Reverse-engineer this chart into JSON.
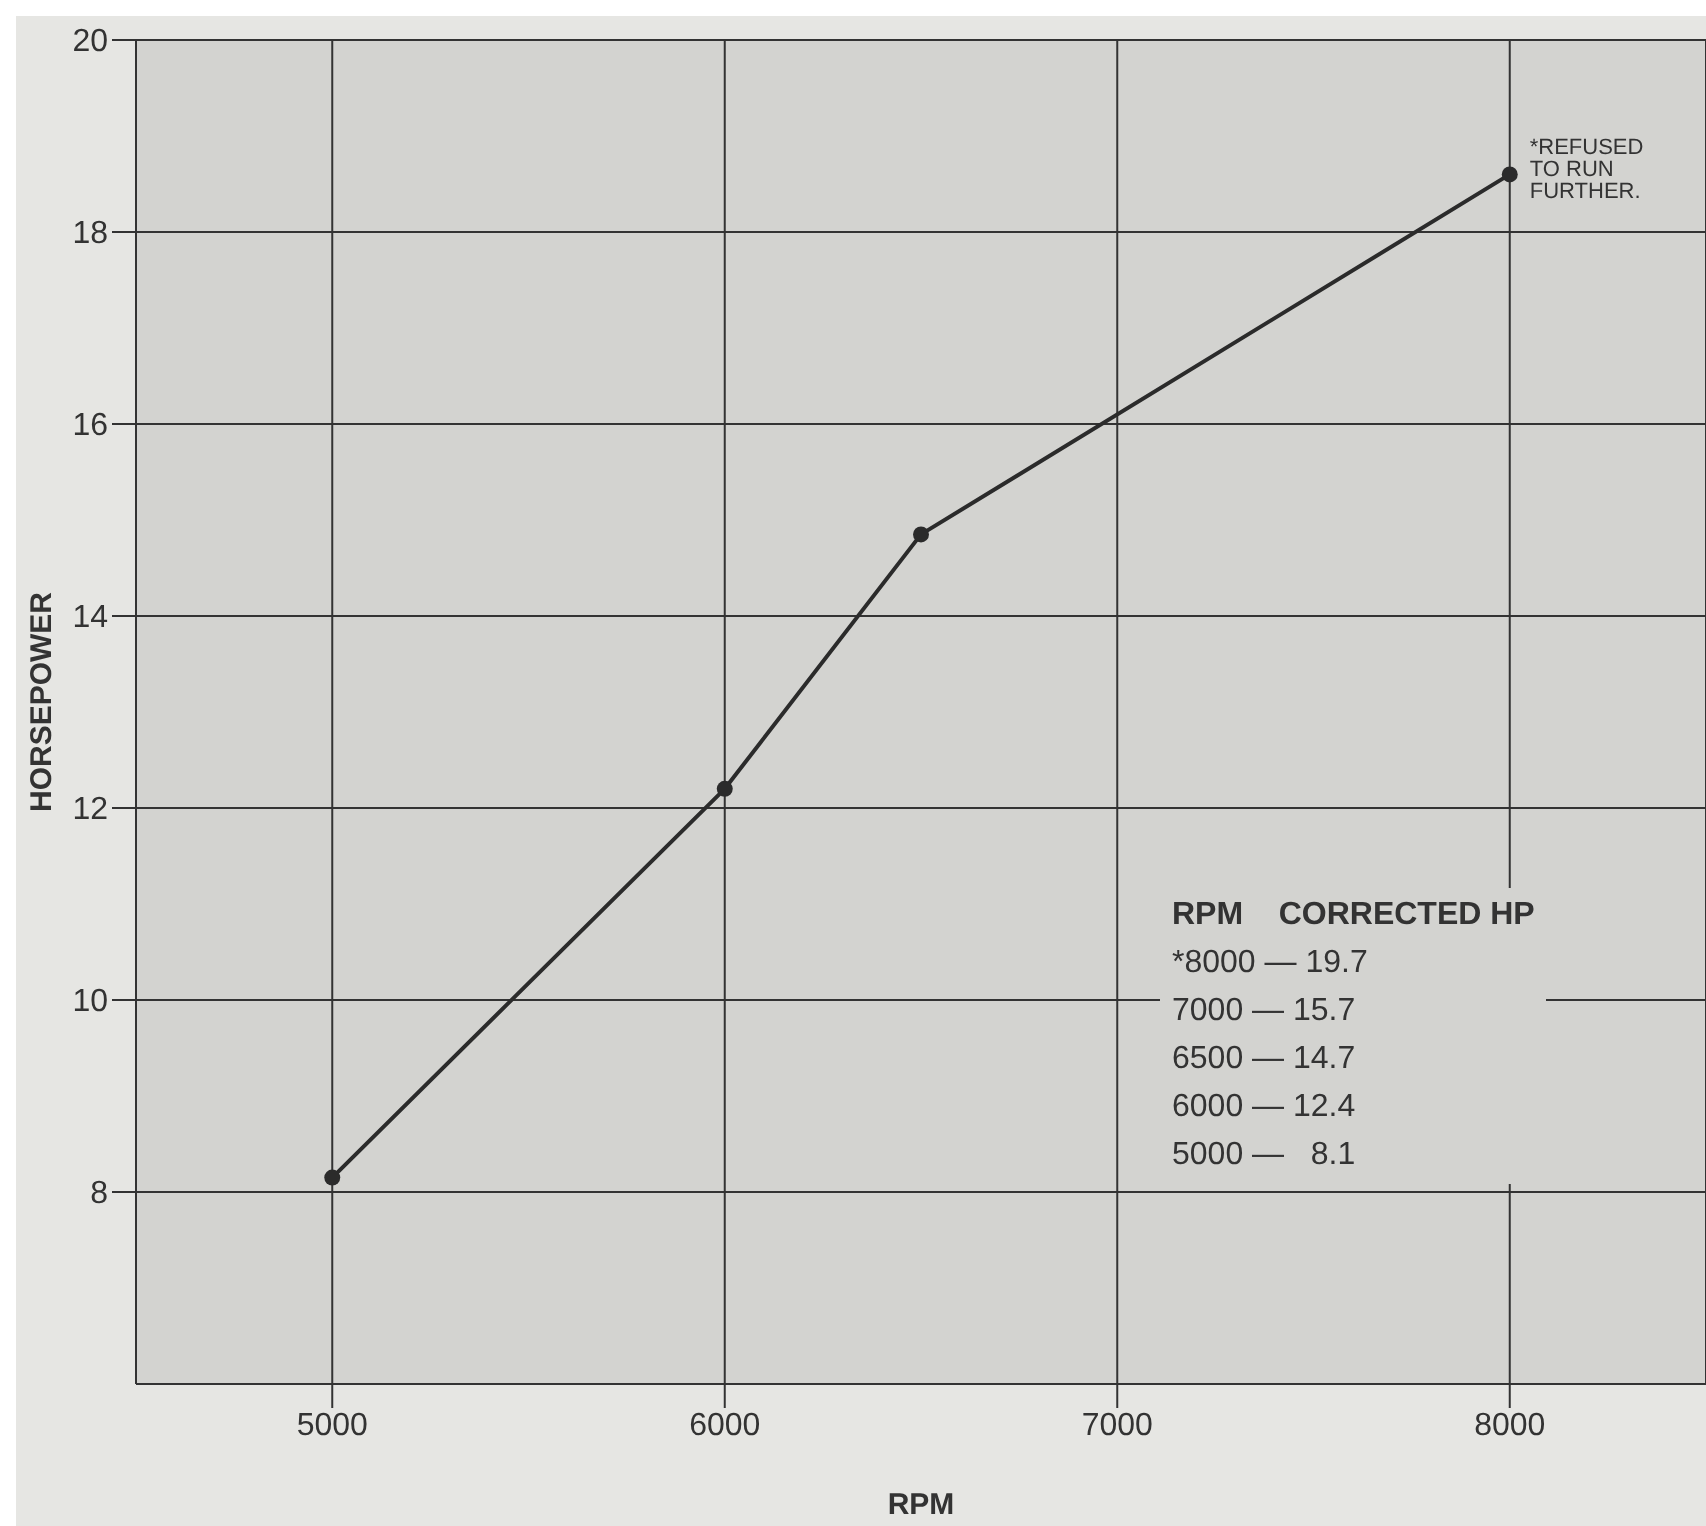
{
  "chart_data": {
    "type": "line",
    "xlabel": "RPM",
    "ylabel": "HORSEPOWER",
    "x": [
      5000,
      6000,
      6500,
      8000
    ],
    "series": [
      {
        "color": "#2b2b2b",
        "values": [
          8.15,
          12.2,
          14.85,
          18.6
        ]
      }
    ],
    "xlim": [
      4500,
      8500
    ],
    "xticks": [
      5000,
      6000,
      7000,
      8000
    ],
    "ylim": [
      6,
      20
    ],
    "yticks": [
      8,
      10,
      12,
      14,
      16,
      18,
      20
    ],
    "grid": true,
    "marker": "circle",
    "line_style": "solid",
    "annotations": [
      {
        "text": "*REFUSED TO RUN FURTHER.",
        "x": 8000,
        "y": 18.6
      },
      "RPM    CORRECTED HP",
      "*8000 — 19.7",
      "7000 — 15.7",
      "6500 — 14.7",
      "6000 — 12.4",
      "5000 —   8.1"
    ]
  }
}
